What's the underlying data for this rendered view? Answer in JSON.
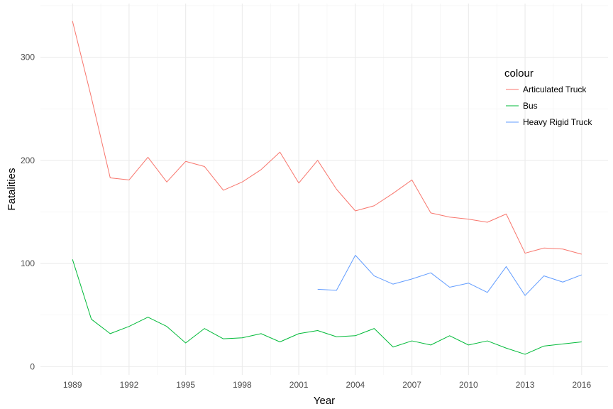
{
  "chart_data": {
    "type": "line",
    "title": "",
    "xlabel": "Year",
    "ylabel": "Fatalities",
    "xlim": [
      1987.3,
      2017.4
    ],
    "ylim": [
      -8,
      352
    ],
    "x_ticks": [
      1989,
      1992,
      1995,
      1998,
      2001,
      2004,
      2007,
      2010,
      2013,
      2016
    ],
    "x_tick_labels": [
      "1989",
      "1992",
      "1995",
      "1998",
      "2001",
      "2004",
      "2007",
      "2010",
      "2013",
      "2016"
    ],
    "y_ticks": [
      0,
      100,
      200,
      300
    ],
    "y_tick_labels": [
      "0",
      "100",
      "200",
      "300"
    ],
    "grid": true,
    "legend": {
      "title": "colour",
      "placement": "right"
    },
    "series": [
      {
        "name": "Articulated Truck",
        "color": "#F8766D",
        "x": [
          1989,
          1990,
          1991,
          1992,
          1993,
          1994,
          1995,
          1996,
          1997,
          1998,
          1999,
          2000,
          2001,
          2002,
          2003,
          2004,
          2005,
          2006,
          2007,
          2008,
          2009,
          2010,
          2011,
          2012,
          2013,
          2014,
          2015,
          2016
        ],
        "values": [
          335,
          261,
          183,
          181,
          203,
          179,
          199,
          194,
          171,
          179,
          191,
          208,
          178,
          200,
          172,
          151,
          156,
          168,
          181,
          149,
          145,
          143,
          140,
          148,
          110,
          115,
          114,
          109
        ]
      },
      {
        "name": "Bus",
        "color": "#00BA38",
        "x": [
          1989,
          1990,
          1991,
          1992,
          1993,
          1994,
          1995,
          1996,
          1997,
          1998,
          1999,
          2000,
          2001,
          2002,
          2003,
          2004,
          2005,
          2006,
          2007,
          2008,
          2009,
          2010,
          2011,
          2012,
          2013,
          2014,
          2015,
          2016
        ],
        "values": [
          104,
          46,
          32,
          39,
          48,
          39,
          23,
          37,
          27,
          28,
          32,
          24,
          32,
          35,
          29,
          30,
          37,
          19,
          25,
          21,
          30,
          21,
          25,
          18,
          12,
          20,
          22,
          24
        ]
      },
      {
        "name": "Heavy Rigid Truck",
        "color": "#619CFF",
        "x": [
          2002,
          2003,
          2004,
          2005,
          2006,
          2007,
          2008,
          2009,
          2010,
          2011,
          2012,
          2013,
          2014,
          2015,
          2016
        ],
        "values": [
          75,
          74,
          108,
          88,
          80,
          85,
          91,
          77,
          81,
          72,
          97,
          69,
          88,
          82,
          89
        ]
      }
    ]
  }
}
